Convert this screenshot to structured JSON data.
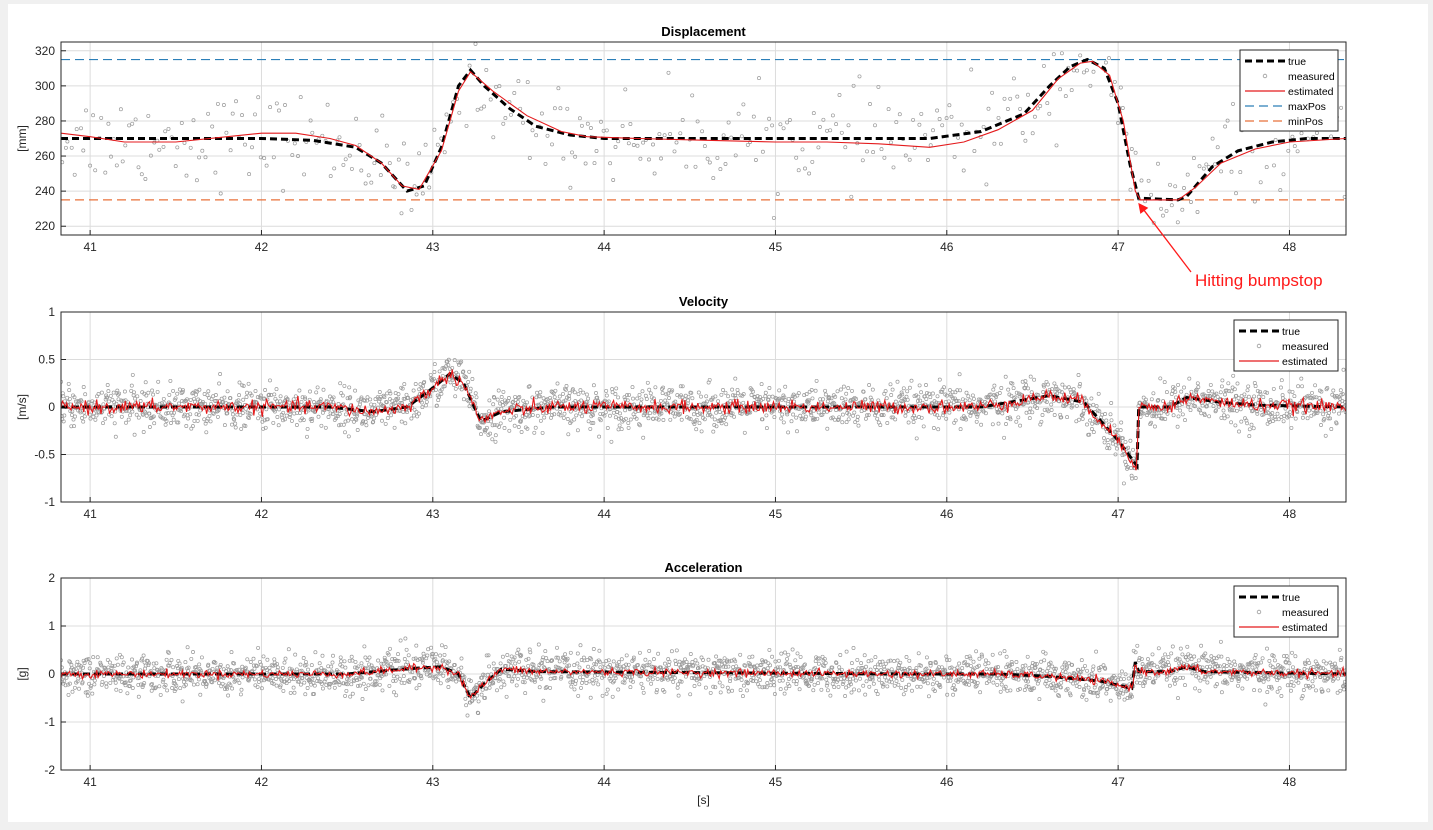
{
  "figure": {
    "xlabel": "[s]"
  },
  "annotation": {
    "text": "Hitting bumpstop",
    "color": "#ff1a1a",
    "target": {
      "x": 47.1,
      "y": 235
    }
  },
  "colors": {
    "true": "#000000",
    "measured": "#9a9a9a",
    "estimated": "#e41a1c",
    "maxPos": "#2c7fb8",
    "minPos": "#e8703a",
    "grid": "#dcdcdc"
  },
  "chart_data": [
    {
      "type": "line",
      "title": "Displacement",
      "ylabel": "[mm]",
      "xlabel": "",
      "xlim": [
        40.83,
        48.33
      ],
      "ylim": [
        215,
        325
      ],
      "xticks": [
        "41",
        "42",
        "43",
        "44",
        "45",
        "46",
        "47",
        "48"
      ],
      "yticks": [
        "220",
        "240",
        "260",
        "280",
        "300",
        "320"
      ],
      "grid": true,
      "legend": {
        "position": "top-right",
        "entries": [
          "true",
          "measured",
          "estimated",
          "maxPos",
          "minPos"
        ]
      },
      "series": [
        {
          "name": "true",
          "style": "dashed-bold",
          "points": [
            [
              40.83,
              270
            ],
            [
              42,
              270
            ],
            [
              42.3,
              269
            ],
            [
              42.55,
              265
            ],
            [
              42.7,
              256
            ],
            [
              42.85,
              240
            ],
            [
              42.95,
              243
            ],
            [
              43.05,
              265
            ],
            [
              43.15,
              300
            ],
            [
              43.22,
              309
            ],
            [
              43.3,
              300
            ],
            [
              43.45,
              287
            ],
            [
              43.6,
              277
            ],
            [
              43.8,
              272
            ],
            [
              44,
              270
            ],
            [
              45,
              270
            ],
            [
              45.9,
              270
            ],
            [
              46.2,
              274
            ],
            [
              46.45,
              284
            ],
            [
              46.6,
              300
            ],
            [
              46.72,
              311
            ],
            [
              46.82,
              315
            ],
            [
              46.92,
              310
            ],
            [
              47.0,
              290
            ],
            [
              47.07,
              255
            ],
            [
              47.12,
              236
            ],
            [
              47.35,
              235
            ],
            [
              47.4,
              237
            ],
            [
              47.55,
              254
            ],
            [
              47.7,
              263
            ],
            [
              47.9,
              268
            ],
            [
              48.1,
              270
            ],
            [
              48.33,
              270
            ]
          ]
        },
        {
          "name": "measured",
          "style": "scatter-noise",
          "noise": 13
        },
        {
          "name": "estimated",
          "style": "solid",
          "points": [
            [
              40.83,
              273
            ],
            [
              41.0,
              271
            ],
            [
              41.2,
              268
            ],
            [
              41.5,
              268
            ],
            [
              41.8,
              271
            ],
            [
              42.0,
              273
            ],
            [
              42.2,
              273
            ],
            [
              42.4,
              270
            ],
            [
              42.55,
              266
            ],
            [
              42.7,
              256
            ],
            [
              42.82,
              243
            ],
            [
              42.92,
              241
            ],
            [
              43.05,
              263
            ],
            [
              43.15,
              297
            ],
            [
              43.22,
              308
            ],
            [
              43.35,
              297
            ],
            [
              43.55,
              283
            ],
            [
              43.75,
              274
            ],
            [
              43.9,
              271
            ],
            [
              44.2,
              270
            ],
            [
              44.6,
              269
            ],
            [
              45.0,
              268
            ],
            [
              45.3,
              268
            ],
            [
              45.6,
              267
            ],
            [
              45.9,
              265
            ],
            [
              46.1,
              268
            ],
            [
              46.3,
              275
            ],
            [
              46.5,
              286
            ],
            [
              46.65,
              304
            ],
            [
              46.78,
              313
            ],
            [
              46.85,
              314
            ],
            [
              46.95,
              306
            ],
            [
              47.03,
              280
            ],
            [
              47.1,
              240
            ],
            [
              47.13,
              235
            ],
            [
              47.35,
              235
            ],
            [
              47.45,
              242
            ],
            [
              47.6,
              256
            ],
            [
              47.8,
              264
            ],
            [
              48.0,
              268
            ],
            [
              48.33,
              270
            ]
          ]
        },
        {
          "name": "maxPos",
          "style": "hline",
          "value": 315
        },
        {
          "name": "minPos",
          "style": "hline",
          "value": 235
        }
      ]
    },
    {
      "type": "line",
      "title": "Velocity",
      "ylabel": "[m/s]",
      "xlabel": "",
      "xlim": [
        40.83,
        48.33
      ],
      "ylim": [
        -1,
        1
      ],
      "xticks": [
        "41",
        "42",
        "43",
        "44",
        "45",
        "46",
        "47",
        "48"
      ],
      "yticks": [
        "-1",
        "-0.5",
        "0",
        "0.5",
        "1"
      ],
      "grid": true,
      "legend": {
        "position": "top-right",
        "entries": [
          "true",
          "measured",
          "estimated"
        ]
      },
      "series": [
        {
          "name": "true",
          "style": "dashed-bold",
          "points": [
            [
              40.83,
              0
            ],
            [
              42.4,
              0
            ],
            [
              42.65,
              -0.05
            ],
            [
              42.85,
              0
            ],
            [
              43.0,
              0.2
            ],
            [
              43.1,
              0.35
            ],
            [
              43.18,
              0.25
            ],
            [
              43.28,
              -0.15
            ],
            [
              43.4,
              -0.05
            ],
            [
              43.7,
              0
            ],
            [
              46.2,
              0
            ],
            [
              46.6,
              0.12
            ],
            [
              46.8,
              0.05
            ],
            [
              47.0,
              -0.35
            ],
            [
              47.11,
              -0.62
            ],
            [
              47.12,
              0
            ],
            [
              47.3,
              0
            ],
            [
              47.4,
              0.1
            ],
            [
              47.6,
              0.05
            ],
            [
              47.8,
              0.02
            ],
            [
              48.33,
              0
            ]
          ]
        },
        {
          "name": "measured",
          "style": "scatter-noise",
          "noise": 0.11
        },
        {
          "name": "estimated",
          "style": "solid",
          "points": [
            [
              40.83,
              0
            ],
            [
              42.4,
              0
            ],
            [
              42.65,
              -0.05
            ],
            [
              42.85,
              0
            ],
            [
              43.0,
              0.2
            ],
            [
              43.1,
              0.35
            ],
            [
              43.18,
              0.25
            ],
            [
              43.28,
              -0.15
            ],
            [
              43.4,
              -0.05
            ],
            [
              43.7,
              0
            ],
            [
              46.2,
              0
            ],
            [
              46.6,
              0.12
            ],
            [
              46.8,
              0.05
            ],
            [
              47.0,
              -0.35
            ],
            [
              47.11,
              -0.62
            ],
            [
              47.12,
              0
            ],
            [
              47.3,
              0
            ],
            [
              47.4,
              0.1
            ],
            [
              47.6,
              0.05
            ],
            [
              47.8,
              0.02
            ],
            [
              48.33,
              0
            ]
          ]
        }
      ]
    },
    {
      "type": "line",
      "title": "Acceleration",
      "ylabel": "[g]",
      "xlabel": "[s]",
      "xlim": [
        40.83,
        48.33
      ],
      "ylim": [
        -2,
        2
      ],
      "xticks": [
        "41",
        "42",
        "43",
        "44",
        "45",
        "46",
        "47",
        "48"
      ],
      "yticks": [
        "-2",
        "-1",
        "0",
        "1",
        "2"
      ],
      "grid": true,
      "legend": {
        "position": "top-right",
        "entries": [
          "true",
          "measured",
          "estimated"
        ]
      },
      "series": [
        {
          "name": "true",
          "style": "dashed-bold",
          "points": [
            [
              40.83,
              0
            ],
            [
              42.5,
              0
            ],
            [
              42.9,
              0.12
            ],
            [
              43.05,
              0.15
            ],
            [
              43.15,
              0
            ],
            [
              43.22,
              -0.5
            ],
            [
              43.3,
              -0.2
            ],
            [
              43.4,
              0.1
            ],
            [
              43.6,
              0.05
            ],
            [
              45.8,
              0
            ],
            [
              46.3,
              0
            ],
            [
              46.6,
              -0.05
            ],
            [
              46.9,
              -0.15
            ],
            [
              47.08,
              -0.3
            ],
            [
              47.1,
              0.25
            ],
            [
              47.12,
              0.05
            ],
            [
              47.3,
              0.05
            ],
            [
              47.4,
              0.15
            ],
            [
              47.5,
              0.05
            ],
            [
              48.33,
              0
            ]
          ]
        },
        {
          "name": "measured",
          "style": "scatter-noise",
          "noise": 0.2
        },
        {
          "name": "estimated",
          "style": "solid",
          "points": [
            [
              40.83,
              0
            ],
            [
              42.5,
              0
            ],
            [
              42.9,
              0.12
            ],
            [
              43.05,
              0.15
            ],
            [
              43.15,
              0
            ],
            [
              43.22,
              -0.5
            ],
            [
              43.3,
              -0.2
            ],
            [
              43.4,
              0.1
            ],
            [
              43.6,
              0.05
            ],
            [
              45.8,
              0
            ],
            [
              46.3,
              0
            ],
            [
              46.6,
              -0.05
            ],
            [
              46.9,
              -0.15
            ],
            [
              47.08,
              -0.3
            ],
            [
              47.1,
              0.25
            ],
            [
              47.12,
              0.05
            ],
            [
              47.3,
              0.05
            ],
            [
              47.4,
              0.15
            ],
            [
              47.5,
              0.05
            ],
            [
              48.33,
              0
            ]
          ]
        }
      ]
    }
  ]
}
